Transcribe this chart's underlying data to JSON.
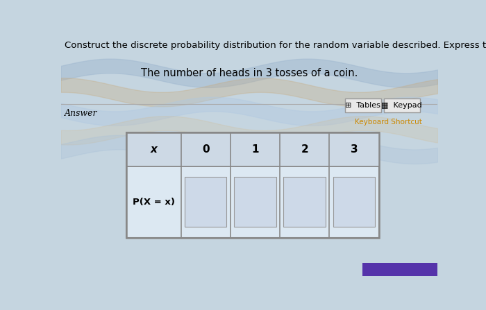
{
  "title_line1": "Construct the discrete probability distribution for the random variable described. Express the probabilities as simplified fractions.",
  "title_line2": "The number of heads in 3 tosses of a coin.",
  "answer_label": "Answer",
  "tables_label": "Tables",
  "keypad_label": "Keypad",
  "keyboard_shortcut_label": "Keyboard Shortcut",
  "x_values": [
    "x",
    "0",
    "1",
    "2",
    "3"
  ],
  "row2_label": "P(X = x)",
  "fig_bg_color": "#c5d5e0",
  "table_bg": "#dce8f0",
  "table_header_bg": "#dce8f0",
  "table_body_bg": "#dce8f0",
  "input_box_bg": "#d8e4ee",
  "table_border_color": "#888888",
  "input_border_color": "#999999",
  "title_fontsize": 9.5,
  "subtitle_fontsize": 10.5,
  "bottom_bar_color": "#5533aa",
  "button_bg": "#e8e8e8",
  "keyboard_shortcut_color": "#cc8800"
}
